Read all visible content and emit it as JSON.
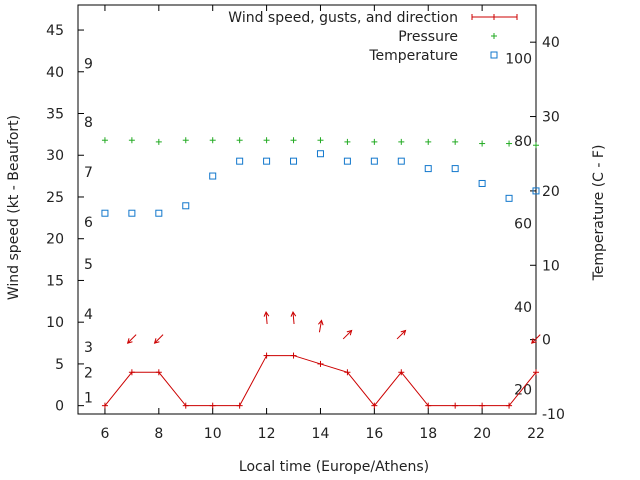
{
  "chart_data": {
    "type": "line",
    "xlabel": "Local time (Europe/Athens)",
    "ylabel": "Wind speed (kt - Beaufort)",
    "y2label": "Temperature (C - F)",
    "xlim": [
      5,
      22
    ],
    "ylim": [
      -1,
      48
    ],
    "y2lim": [
      -10,
      45
    ],
    "x_ticks": [
      6,
      8,
      10,
      12,
      14,
      16,
      18,
      20,
      22
    ],
    "y_ticks": [
      0,
      5,
      10,
      15,
      20,
      25,
      30,
      35,
      40,
      45
    ],
    "y2_ticks": [
      -10,
      0,
      10,
      20,
      30,
      40
    ],
    "beaufort_labels": [
      {
        "label": "1",
        "kt": 1
      },
      {
        "label": "2",
        "kt": 4
      },
      {
        "label": "3",
        "kt": 7
      },
      {
        "label": "4",
        "kt": 11
      },
      {
        "label": "5",
        "kt": 17
      },
      {
        "label": "6",
        "kt": 22
      },
      {
        "label": "7",
        "kt": 28
      },
      {
        "label": "8",
        "kt": 34
      },
      {
        "label": "9",
        "kt": 41
      }
    ],
    "fahrenheit_labels": [
      {
        "label": "20",
        "c": -6.7
      },
      {
        "label": "40",
        "c": 4.4
      },
      {
        "label": "60",
        "c": 15.6
      },
      {
        "label": "80",
        "c": 26.7
      },
      {
        "label": "100",
        "c": 37.8
      }
    ],
    "legend": {
      "position": "top-right",
      "entries": [
        "Wind speed, gusts, and direction",
        "Pressure",
        "Temperature"
      ]
    },
    "series": [
      {
        "name": "Wind speed, gusts, and direction",
        "color": "#cc0000",
        "x": [
          6,
          7,
          8,
          9,
          10,
          11,
          12,
          13,
          14,
          15,
          16,
          17,
          18,
          19,
          20,
          21,
          22
        ],
        "values": [
          0,
          4,
          4,
          0,
          0,
          0,
          6,
          6,
          5,
          4,
          0,
          4,
          0,
          0,
          0,
          0,
          4
        ]
      },
      {
        "name": "Wind direction arrows",
        "color": "#cc0000",
        "x": [
          7,
          8,
          12,
          13,
          14,
          15,
          17,
          22
        ],
        "values": [
          8,
          8,
          10.5,
          10.5,
          9.5,
          8.5,
          8.5,
          8
        ],
        "angle_deg": [
          225,
          225,
          355,
          355,
          10,
          45,
          45,
          225
        ]
      },
      {
        "name": "Pressure",
        "color": "#22aa22",
        "x": [
          6,
          7,
          8,
          9,
          10,
          11,
          12,
          13,
          14,
          15,
          16,
          17,
          18,
          19,
          20,
          21,
          22
        ],
        "values": [
          31.8,
          31.8,
          31.6,
          31.8,
          31.8,
          31.8,
          31.8,
          31.8,
          31.8,
          31.6,
          31.6,
          31.6,
          31.6,
          31.6,
          31.4,
          31.4,
          31.2
        ]
      },
      {
        "name": "Temperature",
        "color": "#1177cc",
        "x": [
          6,
          7,
          8,
          9,
          10,
          11,
          12,
          13,
          14,
          15,
          16,
          17,
          18,
          19,
          20,
          21,
          22
        ],
        "values": [
          17,
          17,
          17,
          18,
          22,
          24,
          24,
          24,
          25,
          24,
          24,
          24,
          23,
          23,
          21,
          19,
          20
        ]
      }
    ]
  }
}
